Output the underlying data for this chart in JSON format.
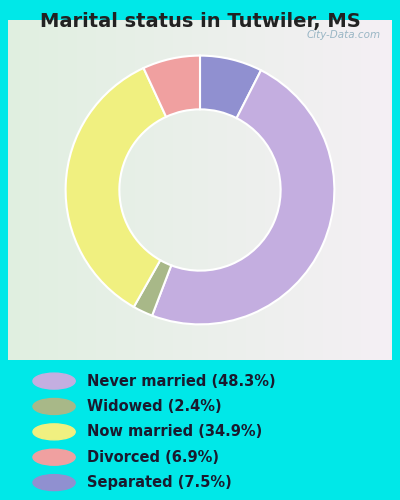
{
  "title": "Marital status in Tutwiler, MS",
  "slices": [
    {
      "label": "Never married (48.3%)",
      "value": 48.3,
      "color": "#c4aee0"
    },
    {
      "label": "Widowed (2.4%)",
      "value": 2.4,
      "color": "#a8b888"
    },
    {
      "label": "Now married (34.9%)",
      "value": 34.9,
      "color": "#f0f080"
    },
    {
      "label": "Divorced (6.9%)",
      "value": 6.9,
      "color": "#f0a0a0"
    },
    {
      "label": "Separated (7.5%)",
      "value": 7.5,
      "color": "#9090d0"
    }
  ],
  "pie_order": [
    4,
    0,
    1,
    2,
    3
  ],
  "bg_outer": "#00e8e8",
  "title_color": "#222222",
  "title_fontsize": 14,
  "legend_fontsize": 10.5,
  "watermark": "City-Data.com"
}
